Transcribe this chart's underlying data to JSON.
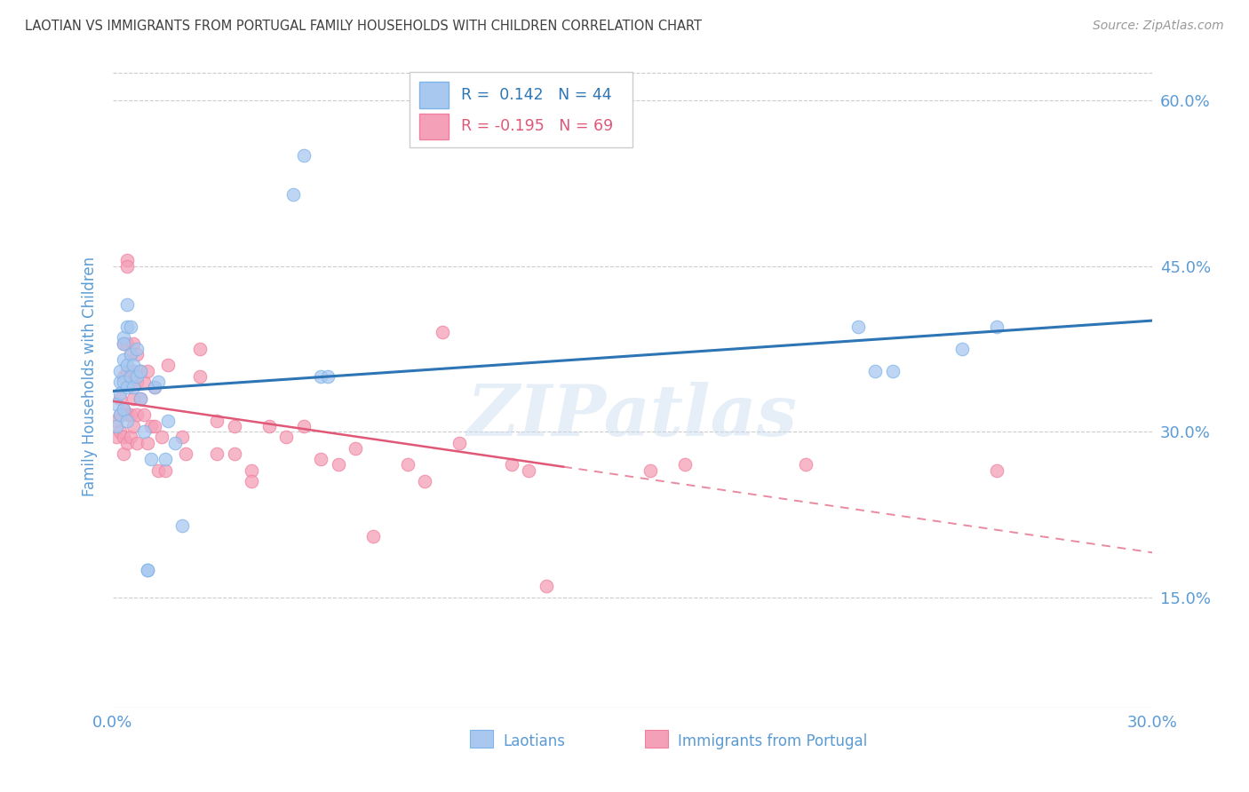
{
  "title": "LAOTIAN VS IMMIGRANTS FROM PORTUGAL FAMILY HOUSEHOLDS WITH CHILDREN CORRELATION CHART",
  "source": "Source: ZipAtlas.com",
  "xlabel_label": "Laotians",
  "xlabel_label2": "Immigrants from Portugal",
  "ylabel": "Family Households with Children",
  "xlim": [
    0.0,
    0.3
  ],
  "ylim": [
    0.05,
    0.65
  ],
  "r_blue": 0.142,
  "n_blue": 44,
  "r_pink": -0.195,
  "n_pink": 69,
  "blue_color": "#A8C8F0",
  "pink_color": "#F4A0B8",
  "blue_edge_color": "#7EB4E8",
  "pink_edge_color": "#F080A0",
  "blue_line_color": "#2E75B6",
  "pink_line_color": "#E05878",
  "grid_color": "#CCCCCC",
  "title_color": "#404040",
  "axis_label_color": "#5B9BD5",
  "tick_color": "#5B9BD5",
  "source_color": "#999999",
  "watermark": "ZIPatlas",
  "blue_scatter": [
    [
      0.001,
      0.305
    ],
    [
      0.001,
      0.325
    ],
    [
      0.002,
      0.345
    ],
    [
      0.002,
      0.335
    ],
    [
      0.002,
      0.315
    ],
    [
      0.002,
      0.355
    ],
    [
      0.003,
      0.385
    ],
    [
      0.003,
      0.365
    ],
    [
      0.003,
      0.345
    ],
    [
      0.003,
      0.32
    ],
    [
      0.003,
      0.38
    ],
    [
      0.004,
      0.415
    ],
    [
      0.004,
      0.395
    ],
    [
      0.004,
      0.36
    ],
    [
      0.004,
      0.34
    ],
    [
      0.004,
      0.31
    ],
    [
      0.005,
      0.395
    ],
    [
      0.005,
      0.37
    ],
    [
      0.005,
      0.35
    ],
    [
      0.006,
      0.36
    ],
    [
      0.006,
      0.34
    ],
    [
      0.007,
      0.375
    ],
    [
      0.007,
      0.35
    ],
    [
      0.008,
      0.355
    ],
    [
      0.008,
      0.33
    ],
    [
      0.009,
      0.3
    ],
    [
      0.01,
      0.175
    ],
    [
      0.01,
      0.175
    ],
    [
      0.011,
      0.275
    ],
    [
      0.012,
      0.34
    ],
    [
      0.013,
      0.345
    ],
    [
      0.015,
      0.275
    ],
    [
      0.016,
      0.31
    ],
    [
      0.018,
      0.29
    ],
    [
      0.02,
      0.215
    ],
    [
      0.052,
      0.515
    ],
    [
      0.055,
      0.55
    ],
    [
      0.06,
      0.35
    ],
    [
      0.062,
      0.35
    ],
    [
      0.215,
      0.395
    ],
    [
      0.22,
      0.355
    ],
    [
      0.245,
      0.375
    ],
    [
      0.225,
      0.355
    ],
    [
      0.255,
      0.395
    ]
  ],
  "pink_scatter": [
    [
      0.001,
      0.31
    ],
    [
      0.001,
      0.295
    ],
    [
      0.002,
      0.33
    ],
    [
      0.002,
      0.315
    ],
    [
      0.002,
      0.3
    ],
    [
      0.003,
      0.38
    ],
    [
      0.003,
      0.35
    ],
    [
      0.003,
      0.32
    ],
    [
      0.003,
      0.295
    ],
    [
      0.003,
      0.28
    ],
    [
      0.004,
      0.455
    ],
    [
      0.004,
      0.45
    ],
    [
      0.004,
      0.38
    ],
    [
      0.004,
      0.355
    ],
    [
      0.004,
      0.315
    ],
    [
      0.004,
      0.29
    ],
    [
      0.005,
      0.37
    ],
    [
      0.005,
      0.345
    ],
    [
      0.005,
      0.315
    ],
    [
      0.005,
      0.295
    ],
    [
      0.006,
      0.38
    ],
    [
      0.006,
      0.355
    ],
    [
      0.006,
      0.33
    ],
    [
      0.006,
      0.305
    ],
    [
      0.007,
      0.37
    ],
    [
      0.007,
      0.345
    ],
    [
      0.007,
      0.315
    ],
    [
      0.007,
      0.29
    ],
    [
      0.008,
      0.355
    ],
    [
      0.008,
      0.33
    ],
    [
      0.009,
      0.345
    ],
    [
      0.009,
      0.315
    ],
    [
      0.01,
      0.355
    ],
    [
      0.01,
      0.29
    ],
    [
      0.011,
      0.305
    ],
    [
      0.012,
      0.34
    ],
    [
      0.012,
      0.305
    ],
    [
      0.013,
      0.265
    ],
    [
      0.014,
      0.295
    ],
    [
      0.015,
      0.265
    ],
    [
      0.016,
      0.36
    ],
    [
      0.02,
      0.295
    ],
    [
      0.021,
      0.28
    ],
    [
      0.025,
      0.375
    ],
    [
      0.025,
      0.35
    ],
    [
      0.03,
      0.31
    ],
    [
      0.03,
      0.28
    ],
    [
      0.035,
      0.305
    ],
    [
      0.035,
      0.28
    ],
    [
      0.04,
      0.265
    ],
    [
      0.04,
      0.255
    ],
    [
      0.045,
      0.305
    ],
    [
      0.05,
      0.295
    ],
    [
      0.055,
      0.305
    ],
    [
      0.06,
      0.275
    ],
    [
      0.065,
      0.27
    ],
    [
      0.07,
      0.285
    ],
    [
      0.075,
      0.205
    ],
    [
      0.085,
      0.27
    ],
    [
      0.09,
      0.255
    ],
    [
      0.095,
      0.39
    ],
    [
      0.1,
      0.29
    ],
    [
      0.115,
      0.27
    ],
    [
      0.12,
      0.265
    ],
    [
      0.125,
      0.16
    ],
    [
      0.155,
      0.265
    ],
    [
      0.165,
      0.27
    ],
    [
      0.2,
      0.27
    ],
    [
      0.255,
      0.265
    ]
  ]
}
